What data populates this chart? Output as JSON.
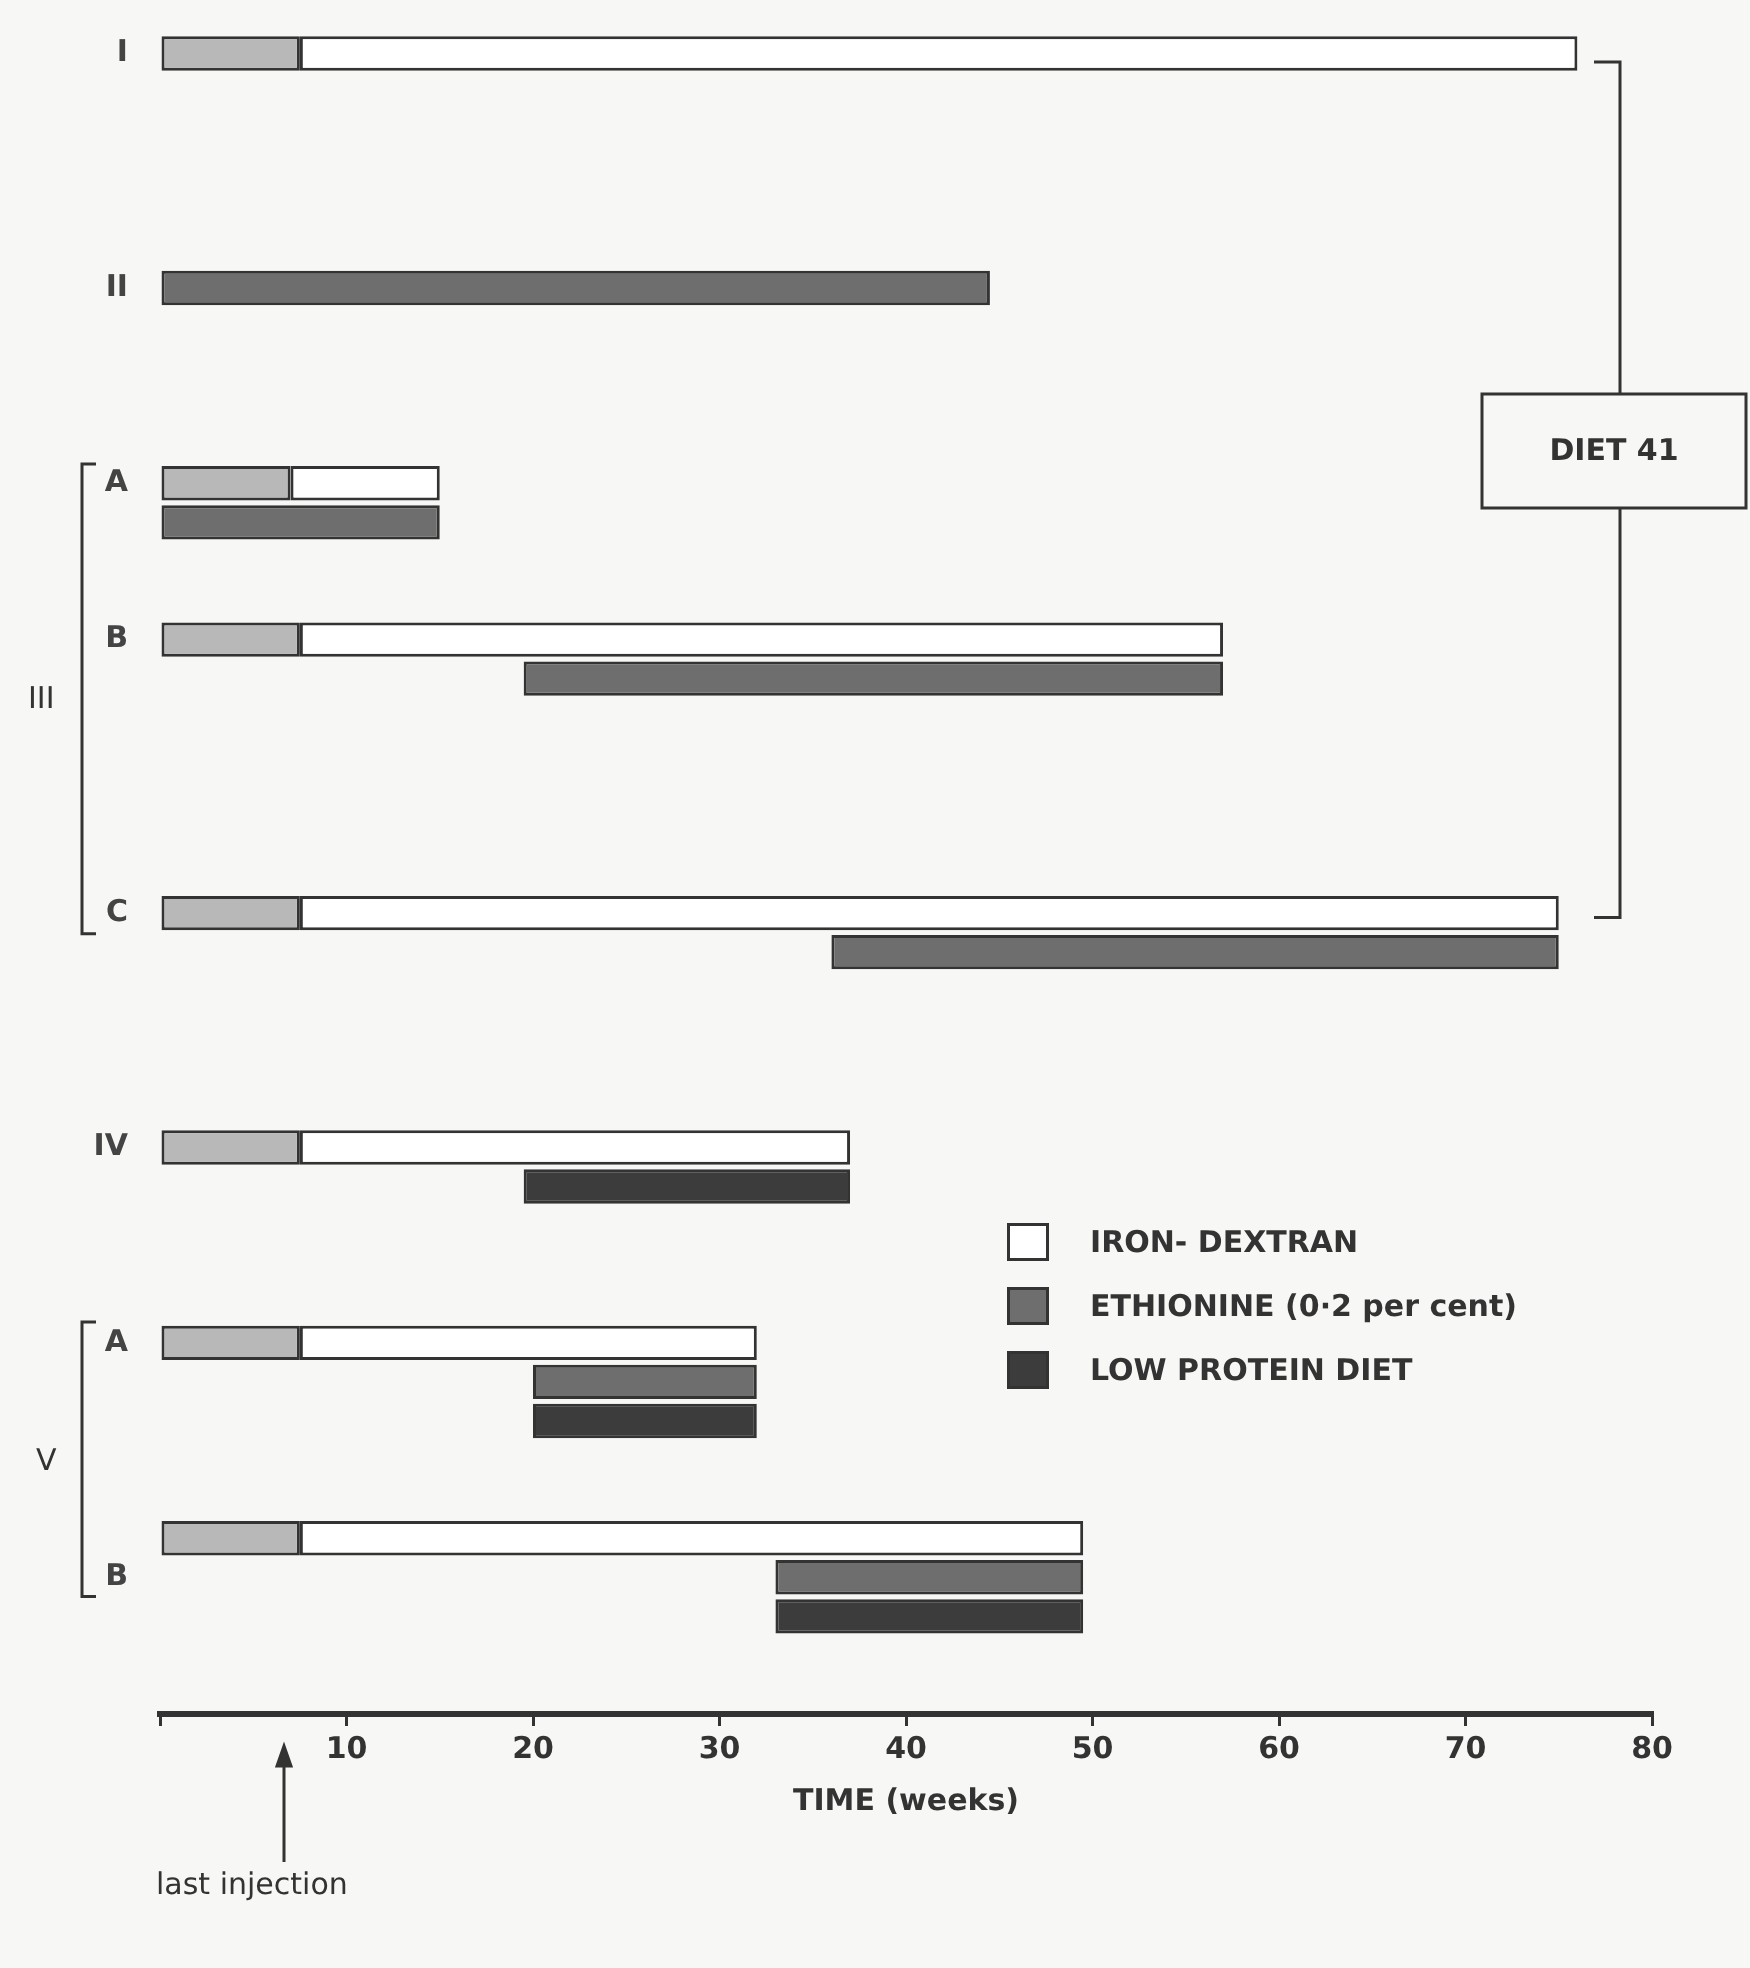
{
  "chart_data": {
    "type": "bar",
    "orientation": "horizontal",
    "xlabel": "TIME (weeks)",
    "categories": [
      "I",
      null,
      null,
      null,
      null,
      null,
      "II",
      null,
      null,
      null,
      null,
      "A",
      null,
      null,
      null,
      "B",
      null,
      null,
      null,
      null,
      null,
      null,
      "C",
      null,
      null,
      null,
      null,
      null,
      "IV",
      null,
      null,
      null,
      null,
      "A",
      null,
      null,
      null,
      null,
      null,
      "B",
      null,
      null,
      null
    ],
    "series": [
      {
        "color": "#b8b8b8",
        "base": [
          0,
          null,
          null,
          null,
          null,
          null,
          null,
          null,
          null,
          null,
          null,
          0,
          null,
          null,
          null,
          0,
          null,
          null,
          null,
          null,
          null,
          null,
          0,
          null,
          null,
          null,
          null,
          null,
          0,
          null,
          null,
          null,
          null,
          0,
          null,
          null,
          null,
          null,
          0,
          null,
          null,
          null,
          null
        ],
        "values": [
          7.5,
          null,
          null,
          null,
          null,
          null,
          null,
          null,
          null,
          null,
          null,
          7,
          null,
          null,
          null,
          7.5,
          null,
          null,
          null,
          null,
          null,
          null,
          7.5,
          null,
          null,
          null,
          null,
          null,
          7.5,
          null,
          null,
          null,
          null,
          7.5,
          null,
          null,
          null,
          null,
          7.5,
          null,
          null,
          null,
          null
        ]
      },
      {
        "name": "IRON- DEXTRAN",
        "color": "#ffffff",
        "base": [
          7.5,
          null,
          null,
          null,
          null,
          null,
          null,
          null,
          null,
          null,
          null,
          7,
          null,
          null,
          null,
          7.5,
          null,
          null,
          null,
          null,
          null,
          null,
          7.5,
          null,
          null,
          null,
          null,
          null,
          7.5,
          null,
          null,
          null,
          null,
          7.5,
          null,
          null,
          null,
          null,
          7.5,
          null,
          null,
          null,
          null
        ],
        "values": [
          68.5,
          null,
          null,
          null,
          null,
          null,
          null,
          null,
          null,
          null,
          null,
          8,
          null,
          null,
          null,
          49.5,
          null,
          null,
          null,
          null,
          null,
          null,
          67.5,
          null,
          null,
          null,
          null,
          null,
          29.5,
          null,
          null,
          null,
          null,
          24.5,
          null,
          null,
          null,
          null,
          42,
          null,
          null,
          null,
          null
        ]
      },
      {
        "name": "ETHIONINE (0·2 per cent)",
        "color": "#6e6e6e",
        "base": [
          null,
          null,
          null,
          null,
          null,
          null,
          0,
          null,
          null,
          null,
          null,
          null,
          0,
          null,
          null,
          null,
          19.5,
          null,
          null,
          null,
          null,
          null,
          null,
          36,
          null,
          null,
          null,
          null,
          null,
          null,
          null,
          null,
          null,
          null,
          20,
          null,
          null,
          null,
          null,
          33,
          null,
          null,
          null
        ],
        "values": [
          null,
          null,
          null,
          null,
          null,
          null,
          44.5,
          null,
          null,
          null,
          null,
          null,
          15,
          null,
          null,
          null,
          37.5,
          null,
          null,
          null,
          null,
          null,
          null,
          39,
          null,
          null,
          null,
          null,
          null,
          null,
          null,
          null,
          null,
          null,
          12,
          null,
          null,
          null,
          null,
          16.5,
          null,
          null,
          null
        ]
      },
      {
        "name": "LOW PROTEIN DIET",
        "color": "#3c3c3c",
        "base": [
          null,
          null,
          null,
          null,
          null,
          null,
          null,
          null,
          null,
          null,
          null,
          null,
          null,
          null,
          null,
          null,
          null,
          null,
          null,
          null,
          null,
          null,
          null,
          null,
          null,
          null,
          null,
          null,
          null,
          19.5,
          null,
          null,
          null,
          null,
          null,
          20,
          null,
          null,
          null,
          null,
          33,
          null,
          null
        ],
        "values": [
          null,
          null,
          null,
          null,
          null,
          null,
          null,
          null,
          null,
          null,
          null,
          null,
          null,
          null,
          null,
          null,
          null,
          null,
          null,
          null,
          null,
          null,
          null,
          null,
          null,
          null,
          null,
          null,
          null,
          17.5,
          null,
          null,
          null,
          null,
          null,
          12,
          null,
          null,
          null,
          null,
          16.5,
          null,
          null
        ]
      }
    ],
    "xlim": [
      0,
      80
    ],
    "xticks": [
      {
        "value": 0,
        "label": null
      },
      10,
      20,
      30,
      40,
      50,
      60,
      70,
      80
    ],
    "grid": false,
    "legend": "right",
    "annotations": [
      "III",
      "V",
      "DIET 41",
      "last injection"
    ]
  }
}
